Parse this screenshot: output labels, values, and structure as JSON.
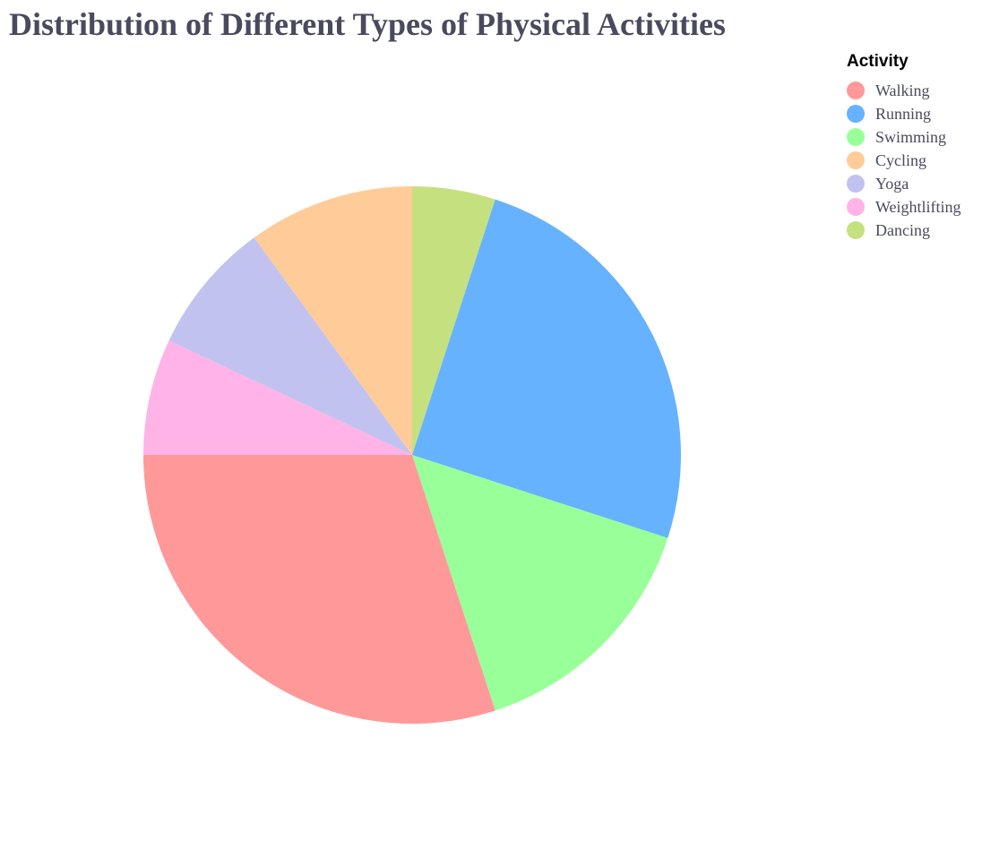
{
  "chart_data": {
    "type": "pie",
    "title": "Distribution of Different Types of Physical Activities",
    "legend_title": "Activity",
    "legend_position": "top-right",
    "start_angle": "12 o'clock",
    "direction": "clockwise",
    "slices": [
      {
        "label": "Dancing",
        "value": 5,
        "color": "#C5E17F"
      },
      {
        "label": "Running",
        "value": 25,
        "color": "#66B2FF"
      },
      {
        "label": "Swimming",
        "value": 15,
        "color": "#99FF99"
      },
      {
        "label": "Walking",
        "value": 30,
        "color": "#FF9999"
      },
      {
        "label": "Weightlifting",
        "value": 7,
        "color": "#FFB3E6"
      },
      {
        "label": "Yoga",
        "value": 8,
        "color": "#C2C2F0"
      },
      {
        "label": "Cycling",
        "value": 10,
        "color": "#FFCC99"
      }
    ],
    "legend_order": [
      "Walking",
      "Running",
      "Swimming",
      "Cycling",
      "Yoga",
      "Weightlifting",
      "Dancing"
    ]
  }
}
